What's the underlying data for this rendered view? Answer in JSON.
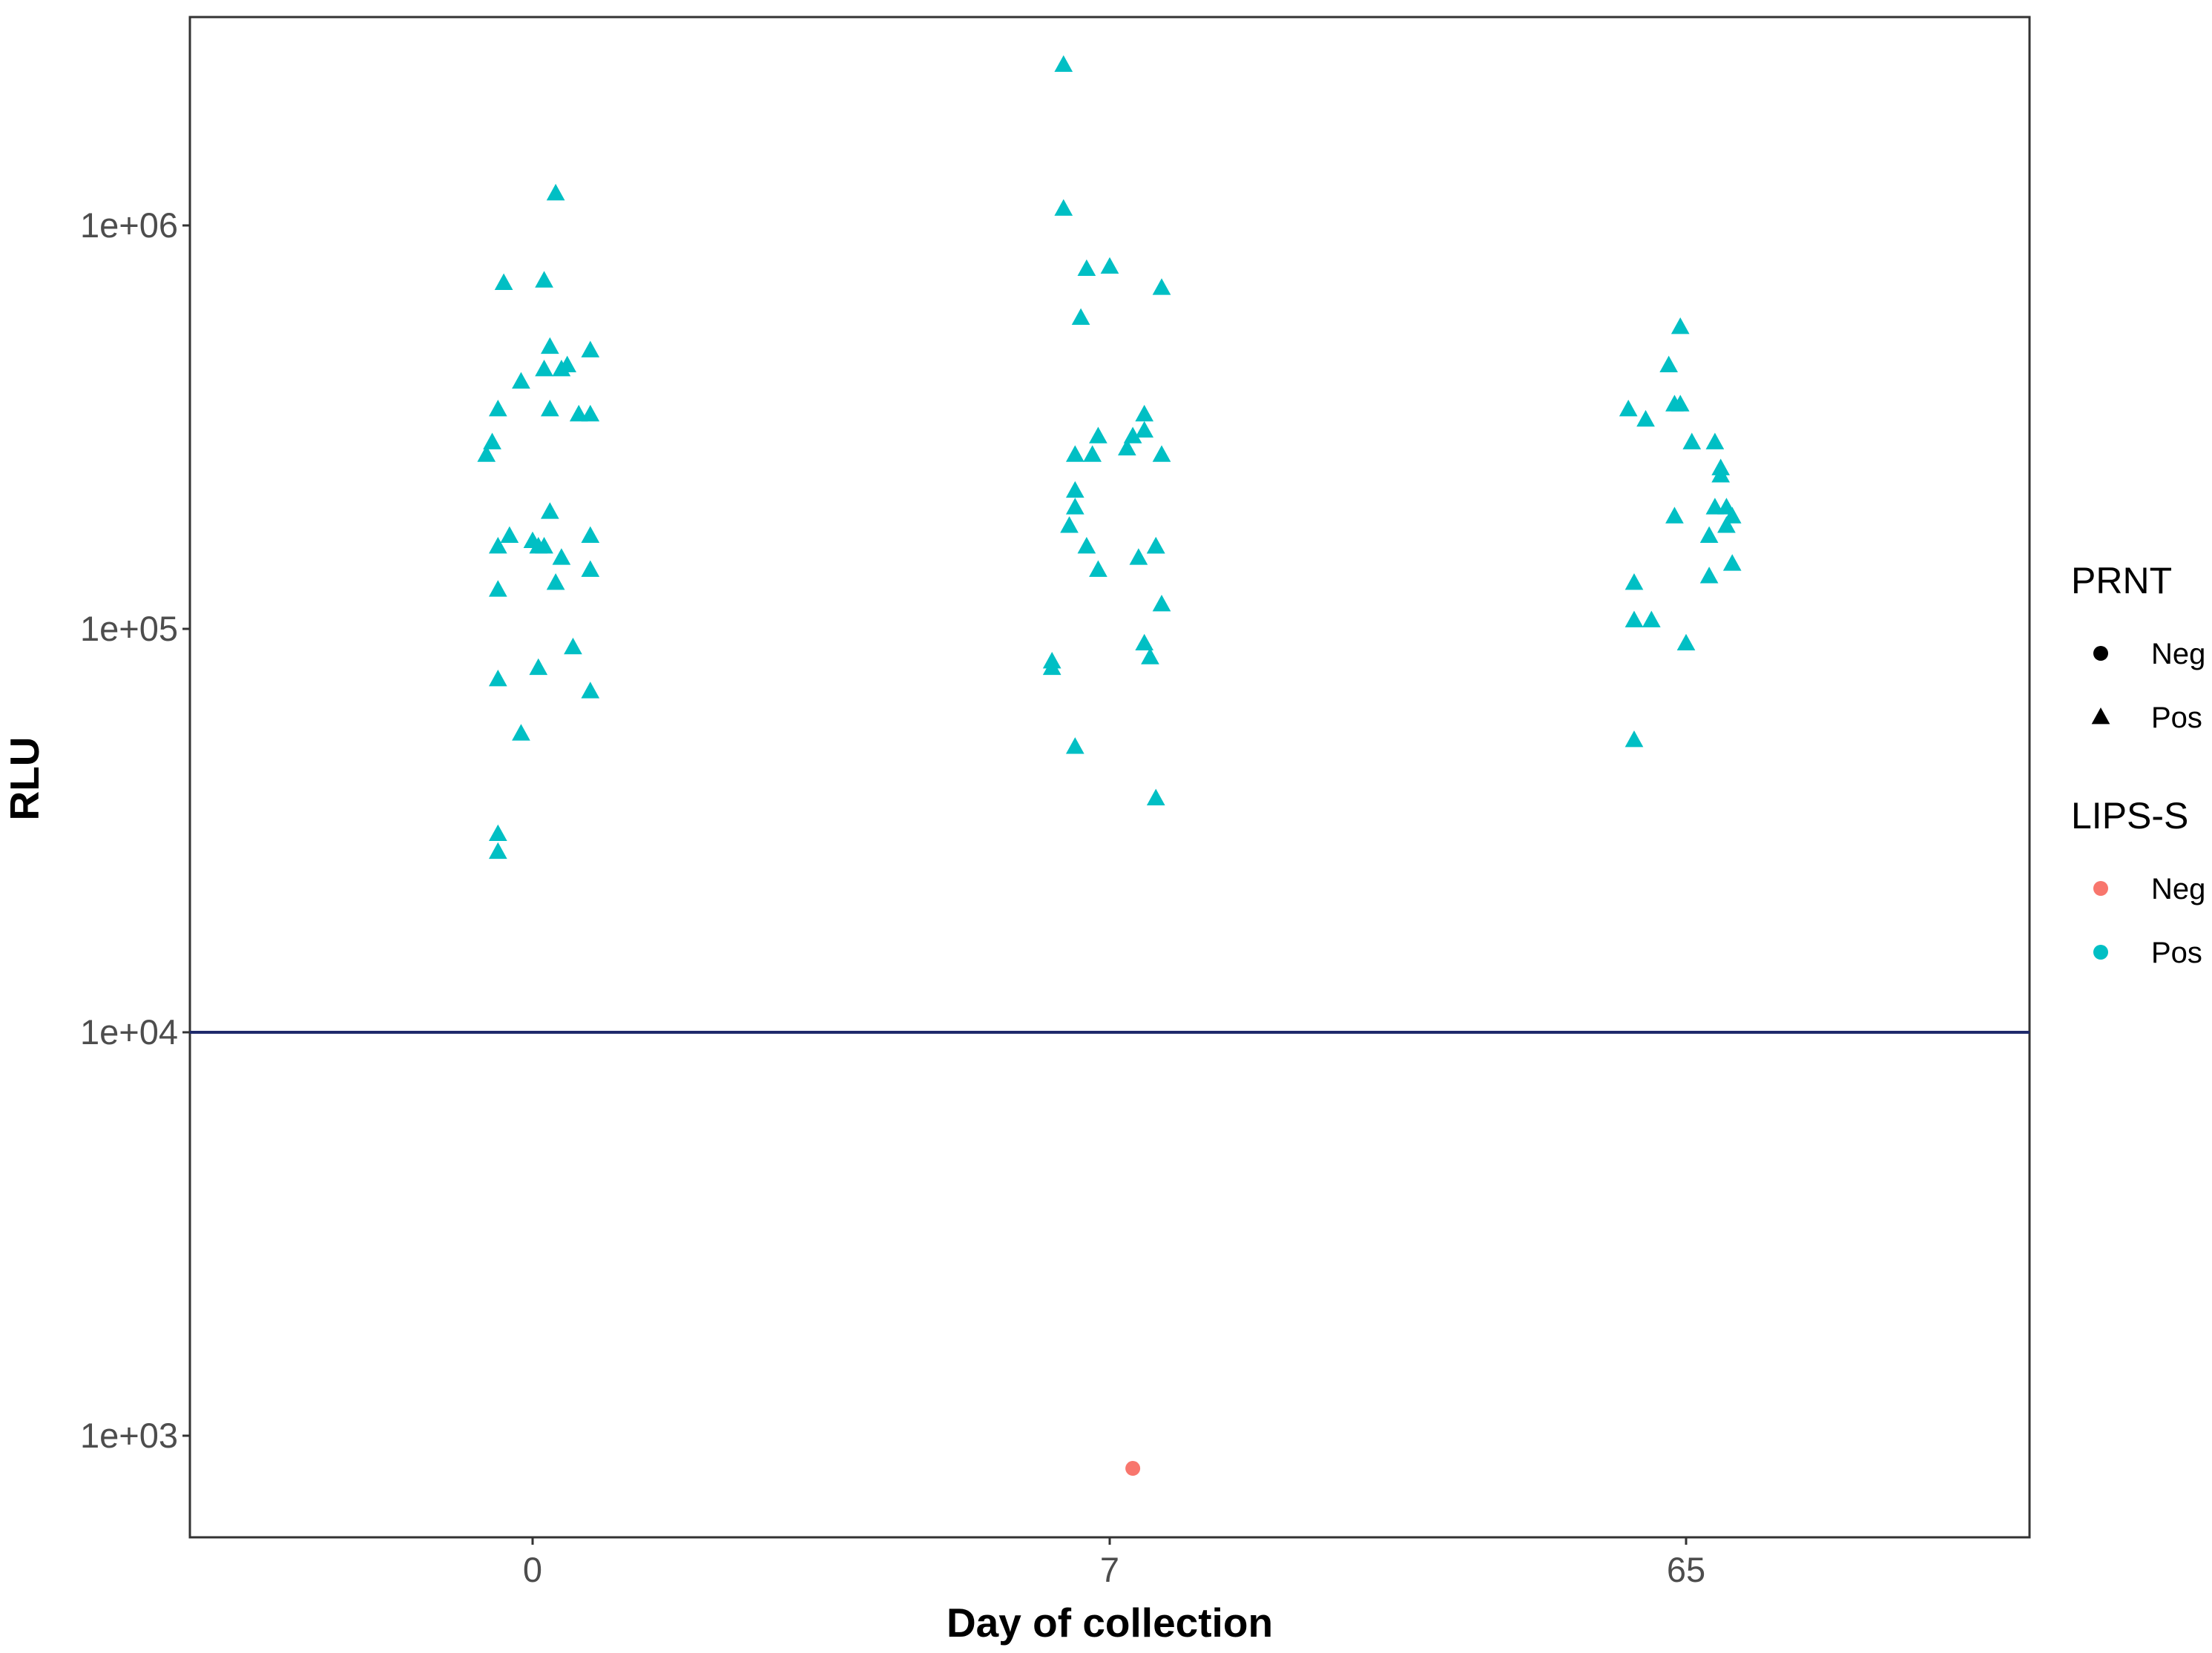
{
  "chart_data": {
    "type": "scatter",
    "title": "",
    "xlabel": "Day of collection",
    "ylabel": "RLU",
    "categories": [
      "0",
      "7",
      "65"
    ],
    "y_scale": "log10",
    "ylim": [
      550,
      4000000
    ],
    "y_ticks": [
      {
        "value": 1000,
        "label": "1e+03"
      },
      {
        "value": 10000,
        "label": "1e+04"
      },
      {
        "value": 100000,
        "label": "1e+05"
      },
      {
        "value": 1000000,
        "label": "1e+06"
      }
    ],
    "threshold": {
      "value": 10000,
      "color": "#1f2a6b"
    },
    "grid": false,
    "legend_position": "right",
    "legends": [
      {
        "title": "PRNT",
        "entries": [
          {
            "label": "Neg",
            "shape": "circle",
            "color": "#000000"
          },
          {
            "label": "Pos",
            "shape": "triangle",
            "color": "#000000"
          }
        ]
      },
      {
        "title": "LIPS-S",
        "entries": [
          {
            "label": "Neg",
            "shape": "circle",
            "color": "#f8766d"
          },
          {
            "label": "Pos",
            "shape": "circle",
            "color": "#00bfc4"
          }
        ]
      }
    ],
    "series": [
      {
        "name": "",
        "prnt": "Pos",
        "lips_s": "Pos",
        "category": "0",
        "offsets": [
          -0.08,
          -0.07,
          -0.05,
          -0.06,
          -0.02,
          0.02,
          0.04,
          0.03,
          0.05,
          -0.06,
          0.05,
          0.02,
          0.1,
          0.1,
          0.0,
          0.03,
          0.1,
          -0.04,
          0.06,
          0.08,
          0.02,
          0.01,
          0.03,
          0.1,
          -0.06,
          0.04,
          0.07,
          0.01,
          -0.06,
          0.1,
          -0.02,
          -0.06,
          -0.06
        ],
        "values": [
          270000,
          290000,
          720000,
          350000,
          410000,
          730000,
          1200000,
          500000,
          440000,
          160000,
          150000,
          160000,
          170000,
          140000,
          165000,
          195000,
          490000,
          170000,
          450000,
          340000,
          440000,
          160000,
          350000,
          70000,
          125000,
          130000,
          90000,
          80000,
          75000,
          340000,
          55000,
          31000,
          28000
        ]
      },
      {
        "name": "",
        "prnt": "Pos",
        "lips_s": "Pos",
        "category": "7",
        "offsets": [
          -0.08,
          -0.08,
          -0.04,
          0.0,
          -0.05,
          0.09,
          0.06,
          0.03,
          0.04,
          -0.06,
          -0.06,
          -0.06,
          -0.07,
          0.08,
          0.05,
          -0.04,
          -0.02,
          0.09,
          -0.03,
          0.09,
          0.06,
          0.07,
          -0.1,
          -0.1,
          -0.06,
          0.08,
          0.06,
          0.08,
          -0.02
        ],
        "values": [
          2500000,
          1100000,
          780000,
          790000,
          590000,
          700000,
          340000,
          280000,
          300000,
          270000,
          220000,
          200000,
          180000,
          160000,
          150000,
          160000,
          140000,
          270000,
          270000,
          115000,
          92000,
          85000,
          83000,
          80000,
          51000,
          38000,
          310000,
          160000,
          300000
        ]
      },
      {
        "name": "",
        "prnt": "Pos",
        "lips_s": "Pos",
        "category": "65",
        "offsets": [
          -0.1,
          -0.07,
          -0.03,
          -0.01,
          0.01,
          -0.01,
          0.05,
          0.06,
          0.06,
          -0.02,
          0.05,
          0.07,
          0.07,
          0.04,
          -0.09,
          -0.09,
          -0.06,
          0.0,
          0.04,
          -0.09,
          0.08,
          0.08,
          -0.02
        ],
        "values": [
          350000,
          330000,
          450000,
          560000,
          290000,
          360000,
          290000,
          250000,
          240000,
          190000,
          200000,
          200000,
          180000,
          170000,
          130000,
          105000,
          105000,
          92000,
          135000,
          53000,
          145000,
          190000,
          360000
        ]
      },
      {
        "name": "",
        "prnt": "Neg",
        "lips_s": "Neg",
        "category": "7",
        "offsets": [
          0.04
        ],
        "values": [
          830
        ]
      }
    ]
  }
}
